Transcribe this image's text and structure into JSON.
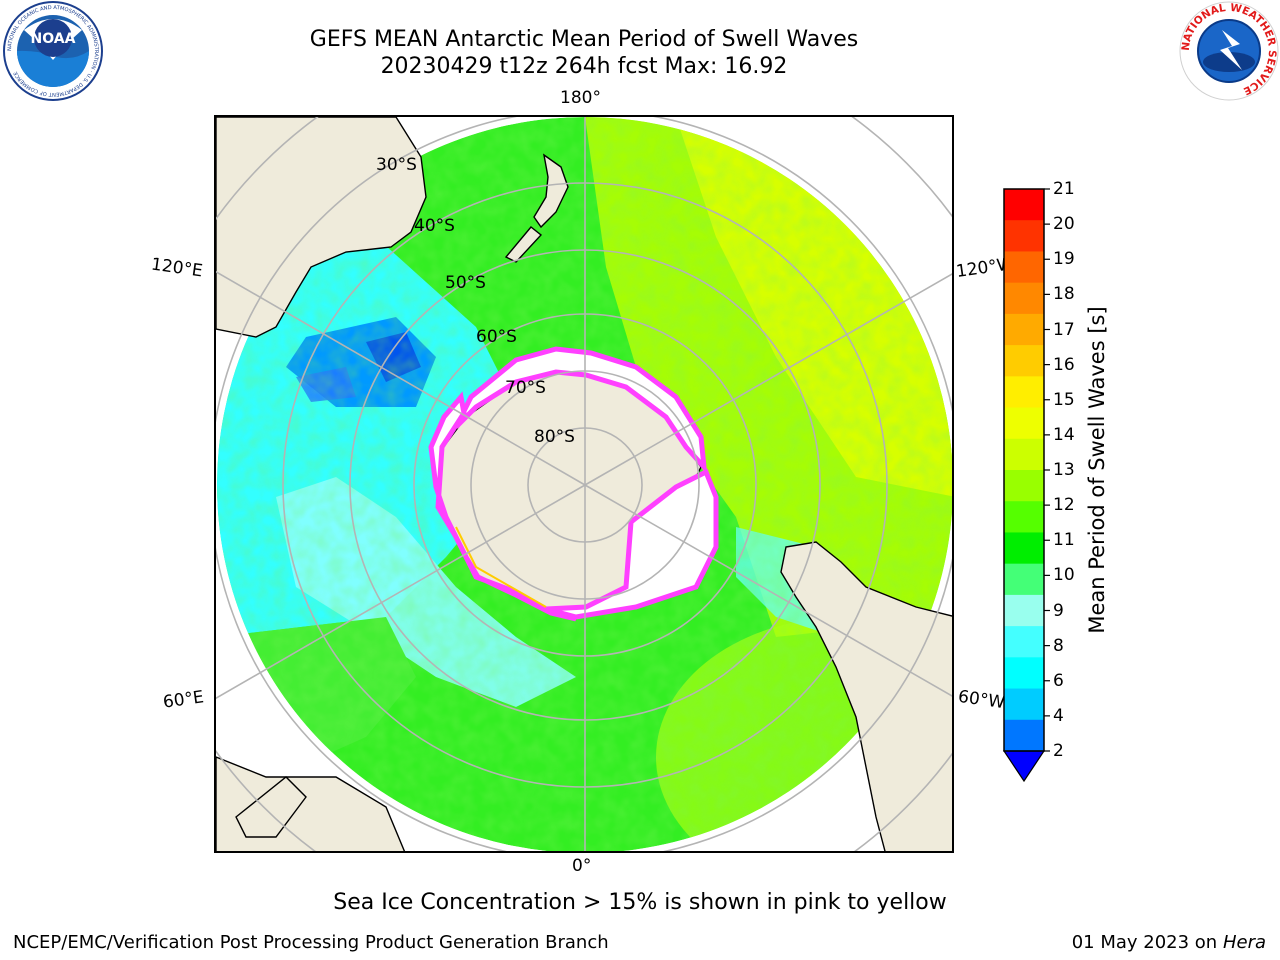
{
  "title": {
    "line1": "GEFS MEAN Antarctic Mean Period of Swell Waves",
    "line2": "20230429 t12z 264h fcst   Max: 16.92"
  },
  "map": {
    "projection": "south-polar-stereographic",
    "latitude_labels": [
      "30°S",
      "40°S",
      "50°S",
      "60°S",
      "70°S",
      "80°S"
    ],
    "longitude_labels": {
      "top": "180°",
      "bottom": "0°",
      "upper_left": "120°E",
      "upper_right": "120°W",
      "lower_left": "60°E",
      "lower_right": "60°W"
    },
    "colors": {
      "land": "#efebdb",
      "sea_ice": "#ffffff",
      "ice_edge_pink": "#ff40ff",
      "grid": "#b4b4b4"
    }
  },
  "colorbar": {
    "label": "Mean Period of Swell Waves [s]",
    "ticks": [
      "21",
      "20",
      "19",
      "18",
      "17",
      "16",
      "15",
      "14",
      "13",
      "12",
      "11",
      "10",
      "9",
      "8",
      "6",
      "4",
      "2"
    ],
    "colors_top_to_bottom": [
      "#ff0000",
      "#ff3300",
      "#ff6600",
      "#ff8800",
      "#ffaa00",
      "#ffcc00",
      "#ffee00",
      "#eeff00",
      "#ccff00",
      "#99ff00",
      "#55ff00",
      "#00ee00",
      "#44ff77",
      "#99ffee",
      "#44ffff",
      "#00ffff",
      "#00ccff",
      "#0077ff"
    ],
    "extend_color": "#0000ff"
  },
  "note": "Sea Ice Concentration > 15% is shown in pink to yellow",
  "footer": {
    "left": "NCEP/EMC/Verification Post Processing Product Generation Branch",
    "date": "01 May 2023 on",
    "host": "Hera"
  },
  "logos": {
    "noaa": "NOAA",
    "noaa_ring": "NATIONAL OCEANIC AND ATMOSPHERIC ADMINISTRATION · U.S. DEPARTMENT OF COMMERCE",
    "nws_ring": "NATIONAL WEATHER SERVICE"
  }
}
